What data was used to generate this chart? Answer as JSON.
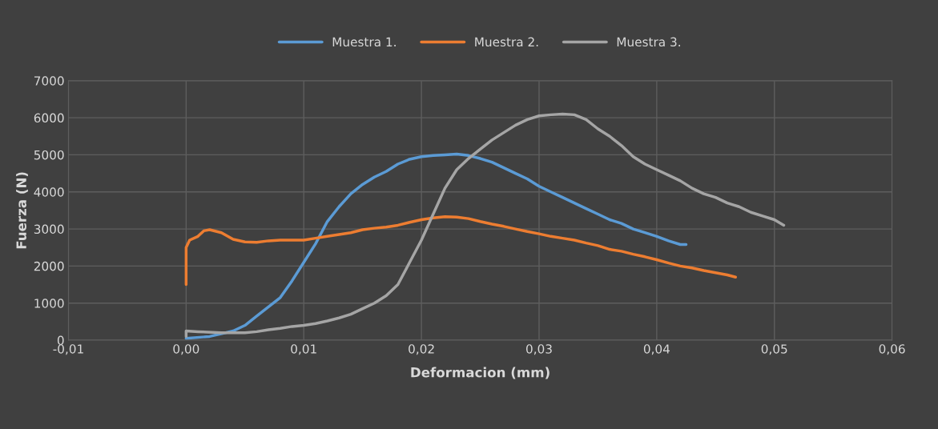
{
  "chart_data": {
    "type": "line",
    "xlabel": "Deformacion (mm)",
    "ylabel": "Fuerza (N)",
    "xlim": [
      -0.01,
      0.06
    ],
    "xticks": [
      {
        "value": -0.01,
        "label": "-0,01"
      },
      {
        "value": 0,
        "label": "0,00"
      },
      {
        "value": 0.01,
        "label": "0,01"
      },
      {
        "value": 0.02,
        "label": "0,02"
      },
      {
        "value": 0.03,
        "label": "0,03"
      },
      {
        "value": 0.04,
        "label": "0,04"
      },
      {
        "value": 0.05,
        "label": "0,05"
      },
      {
        "value": 0.06,
        "label": "0,06"
      }
    ],
    "ylim": [
      0,
      7000
    ],
    "yticks": [
      0,
      1000,
      2000,
      3000,
      4000,
      5000,
      6000,
      7000
    ],
    "grid": true,
    "legend": "top",
    "marker": "none",
    "line_style": "solid",
    "series": [
      {
        "name": "Muestra 1.",
        "color": "#5b9bd5",
        "x": [
          0.0,
          0.002,
          0.004,
          0.005,
          0.006,
          0.007,
          0.008,
          0.009,
          0.01,
          0.011,
          0.012,
          0.013,
          0.014,
          0.015,
          0.016,
          0.017,
          0.018,
          0.019,
          0.02,
          0.021,
          0.022,
          0.023,
          0.024,
          0.025,
          0.026,
          0.027,
          0.028,
          0.029,
          0.03,
          0.031,
          0.032,
          0.033,
          0.034,
          0.035,
          0.036,
          0.037,
          0.038,
          0.039,
          0.04,
          0.041,
          0.042,
          0.0425
        ],
        "values": [
          50,
          100,
          250,
          400,
          650,
          900,
          1150,
          1600,
          2100,
          2600,
          3200,
          3600,
          3950,
          4200,
          4400,
          4550,
          4750,
          4880,
          4950,
          4980,
          5000,
          5020,
          4980,
          4900,
          4800,
          4650,
          4500,
          4350,
          4150,
          4000,
          3850,
          3700,
          3550,
          3400,
          3250,
          3150,
          3000,
          2900,
          2800,
          2680,
          2580,
          2580
        ]
      },
      {
        "name": "Muestra 2.",
        "color": "#ed7d31",
        "x": [
          0.0,
          0.0,
          0.0003,
          0.001,
          0.0015,
          0.002,
          0.003,
          0.004,
          0.005,
          0.006,
          0.007,
          0.008,
          0.009,
          0.01,
          0.011,
          0.012,
          0.013,
          0.014,
          0.015,
          0.016,
          0.017,
          0.018,
          0.019,
          0.02,
          0.021,
          0.022,
          0.023,
          0.024,
          0.025,
          0.026,
          0.027,
          0.028,
          0.029,
          0.03,
          0.031,
          0.032,
          0.033,
          0.034,
          0.035,
          0.036,
          0.037,
          0.038,
          0.039,
          0.04,
          0.041,
          0.042,
          0.043,
          0.044,
          0.045,
          0.046,
          0.0467
        ],
        "values": [
          1500,
          2500,
          2700,
          2800,
          2950,
          2980,
          2900,
          2720,
          2650,
          2640,
          2680,
          2700,
          2700,
          2700,
          2750,
          2800,
          2850,
          2900,
          2980,
          3020,
          3050,
          3100,
          3180,
          3250,
          3300,
          3330,
          3320,
          3280,
          3200,
          3130,
          3070,
          3000,
          2930,
          2870,
          2800,
          2750,
          2700,
          2620,
          2550,
          2450,
          2400,
          2320,
          2250,
          2170,
          2080,
          2000,
          1950,
          1880,
          1820,
          1760,
          1700
        ]
      },
      {
        "name": "Muestra 3.",
        "color": "#a5a5a5",
        "x": [
          0.0,
          0.0,
          0.001,
          0.003,
          0.005,
          0.006,
          0.007,
          0.008,
          0.009,
          0.01,
          0.011,
          0.012,
          0.013,
          0.014,
          0.015,
          0.016,
          0.017,
          0.018,
          0.019,
          0.02,
          0.021,
          0.022,
          0.023,
          0.024,
          0.025,
          0.026,
          0.027,
          0.028,
          0.029,
          0.03,
          0.031,
          0.032,
          0.033,
          0.034,
          0.035,
          0.036,
          0.037,
          0.038,
          0.039,
          0.04,
          0.041,
          0.042,
          0.043,
          0.044,
          0.045,
          0.046,
          0.047,
          0.048,
          0.049,
          0.05,
          0.0508
        ],
        "values": [
          100,
          250,
          230,
          200,
          200,
          230,
          280,
          320,
          370,
          400,
          450,
          520,
          600,
          700,
          850,
          1000,
          1200,
          1500,
          2100,
          2700,
          3400,
          4100,
          4600,
          4900,
          5150,
          5400,
          5600,
          5800,
          5950,
          6050,
          6080,
          6100,
          6080,
          5950,
          5700,
          5500,
          5250,
          4950,
          4750,
          4600,
          4450,
          4300,
          4100,
          3950,
          3850,
          3700,
          3600,
          3450,
          3350,
          3250,
          3100
        ]
      }
    ]
  }
}
